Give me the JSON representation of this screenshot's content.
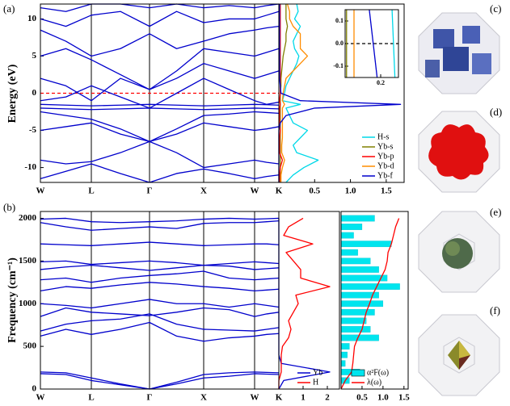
{
  "chart_data": [
    {
      "type": "line",
      "label": "(a)",
      "ylabel": "Energy (eV)",
      "x": [
        0,
        0.315,
        0.63,
        0.99,
        1.35,
        1.685,
        2.02,
        2.335,
        2.65,
        2.8,
        2.95
      ],
      "xlim": [
        0,
        2.95
      ],
      "xticks": [
        {
          "value": 0,
          "label": "W"
        },
        {
          "value": 0.63,
          "label": "L"
        },
        {
          "value": 1.35,
          "label": "Γ"
        },
        {
          "value": 2.02,
          "label": "X"
        },
        {
          "value": 2.65,
          "label": "W"
        },
        {
          "value": 2.95,
          "label": "K"
        }
      ],
      "xgrid": true,
      "ylim": [
        -12,
        12
      ],
      "yticks": [
        -10,
        -5,
        0,
        5,
        10
      ],
      "hline": 0,
      "hline_color": "#ff0000",
      "color": "#0000cc",
      "series": [
        {
          "values": [
            -11.5,
            -10.5,
            -9.5,
            -10.8,
            -12,
            -10.8,
            -10.2,
            -10.8,
            -11.5,
            -11.2,
            -11
          ]
        },
        {
          "values": [
            -9,
            -9.5,
            -9.2,
            -8,
            -6.5,
            -8,
            -10,
            -9.5,
            -9,
            -9.3,
            -9.5
          ]
        },
        {
          "values": [
            -5,
            -4.5,
            -4,
            -5.5,
            -6.5,
            -5.5,
            -4,
            -4.5,
            -5,
            -4.8,
            -4.5
          ]
        },
        {
          "values": [
            -2.5,
            -3,
            -3.5,
            -4.8,
            -6.5,
            -4.8,
            -3,
            -2.8,
            -2.5,
            -2.6,
            -2.7
          ]
        },
        {
          "values": [
            -1.5,
            -1.6,
            -1.7,
            -1.6,
            -1.5,
            -1.6,
            -1.7,
            -1.6,
            -1.5,
            -1.55,
            -1.6
          ]
        },
        {
          "values": [
            -2,
            -2.1,
            -2.2,
            -2.1,
            -2,
            -2.1,
            -2.2,
            -2.1,
            -2,
            -2.05,
            -2.1
          ]
        },
        {
          "values": [
            -1,
            -0.5,
            1,
            -0.5,
            -2,
            0,
            2,
            0.5,
            -1,
            -1.5,
            -1.2
          ]
        },
        {
          "values": [
            2,
            1,
            -1,
            2,
            0.5,
            2,
            4,
            3,
            2,
            2.5,
            3
          ]
        },
        {
          "values": [
            5,
            6,
            4.5,
            2.5,
            0.5,
            3,
            6,
            5.5,
            5,
            5.5,
            6
          ]
        },
        {
          "values": [
            8.5,
            7,
            5,
            6,
            8,
            6,
            7,
            8,
            8.5,
            8.8,
            9
          ]
        },
        {
          "values": [
            10,
            9,
            10.5,
            11,
            9,
            11,
            9.5,
            10,
            10,
            10.5,
            11
          ]
        },
        {
          "values": [
            11.5,
            11,
            12,
            12,
            11.5,
            12,
            11.5,
            11.8,
            11.5,
            11.8,
            12
          ]
        }
      ]
    },
    {
      "type": "line",
      "orientation": "horizontal",
      "y": [
        -12,
        -11,
        -10,
        -9,
        -8,
        -7,
        -6,
        -5,
        -4,
        -3,
        -2,
        -1.5,
        -1,
        0,
        1,
        2,
        3,
        4,
        5,
        6,
        7,
        8,
        9,
        10,
        11,
        12
      ],
      "ylim": [
        -12,
        12
      ],
      "xlim": [
        0,
        1.75
      ],
      "xticks": [
        0.5,
        {
          "value": 1,
          "label": "1.0"
        },
        1.5
      ],
      "legend": "lower right",
      "series": [
        {
          "name": "H-s",
          "color": "#00d8e8",
          "values": [
            0.1,
            0.2,
            0.35,
            0.55,
            0.25,
            0.2,
            0.3,
            0.4,
            0.2,
            0.15,
            0.1,
            0.3,
            0.05,
            0.08,
            0.1,
            0.15,
            0.2,
            0.25,
            0.28,
            0.22,
            0.2,
            0.25,
            0.3,
            0.22,
            0.27,
            0.25
          ]
        },
        {
          "name": "Yb-s",
          "color": "#808000",
          "values": [
            0.02,
            0.02,
            0.02,
            0.02,
            0.02,
            0.02,
            0.02,
            0.02,
            0.02,
            0.02,
            0.02,
            0.02,
            0.02,
            0.02,
            0.03,
            0.03,
            0.04,
            0.05,
            0.06,
            0.08,
            0.1,
            0.1,
            0.12,
            0.1,
            0.1,
            0.1
          ]
        },
        {
          "name": "Yb-p",
          "color": "#ff0000",
          "values": [
            0.01,
            0.01,
            0.02,
            0.05,
            0.01,
            0.01,
            0.01,
            0.02,
            0.01,
            0.01,
            0.01,
            0.02,
            0.01,
            0.02,
            0.02,
            0.02,
            0.02,
            0.02,
            0.02,
            0.02,
            0.02,
            0.02,
            0.02,
            0.02,
            0.02,
            0.02
          ]
        },
        {
          "name": "Yb-d",
          "color": "#ff8c00",
          "values": [
            0.03,
            0.03,
            0.05,
            0.08,
            0.04,
            0.04,
            0.05,
            0.05,
            0.05,
            0.05,
            0.05,
            0.08,
            0.05,
            0.06,
            0.08,
            0.1,
            0.2,
            0.3,
            0.4,
            0.3,
            0.3,
            0.3,
            0.2,
            0.15,
            0.15,
            0.12
          ]
        },
        {
          "name": "Yb-f",
          "color": "#0000cc",
          "values": [
            0,
            0,
            0,
            0,
            0,
            0,
            0,
            0,
            0.02,
            0.1,
            0.5,
            1.7,
            0.3,
            0.03,
            0.02,
            0.01,
            0.01,
            0.01,
            0.01,
            0.01,
            0.01,
            0.01,
            0.01,
            0.01,
            0.01,
            0.01
          ]
        }
      ]
    },
    {
      "type": "line",
      "xlim": [
        0.1,
        0.25
      ],
      "xticks": [
        0.2
      ],
      "ylim": [
        -0.15,
        0.15
      ],
      "yticks": [
        -0.1,
        {
          "value": 0,
          "label": "0.0"
        },
        0.1
      ],
      "hline": 0,
      "hline_color": "#000000",
      "series": [
        {
          "color": "#808000",
          "x": [
            0.104,
            0.104
          ],
          "values": [
            0.15,
            -0.15
          ]
        },
        {
          "color": "#ff8c00",
          "x": [
            0.125,
            0.125
          ],
          "values": [
            0.15,
            -0.15
          ]
        },
        {
          "color": "#0000cc",
          "x": [
            0.168,
            0.19
          ],
          "values": [
            0.15,
            -0.15
          ]
        },
        {
          "color": "#00d8e8",
          "x": [
            0.232,
            0.24
          ],
          "values": [
            0.15,
            -0.15
          ]
        }
      ]
    },
    {
      "type": "line",
      "label": "(b)",
      "ylabel": "Frequency (cm⁻¹)",
      "x": [
        0,
        0.315,
        0.63,
        0.99,
        1.35,
        1.685,
        2.02,
        2.335,
        2.65,
        2.8,
        2.95
      ],
      "xlim": [
        0,
        2.95
      ],
      "xticks": [
        {
          "value": 0,
          "label": "W"
        },
        {
          "value": 0.63,
          "label": "L"
        },
        {
          "value": 1.35,
          "label": "Γ"
        },
        {
          "value": 2.02,
          "label": "X"
        },
        {
          "value": 2.65,
          "label": "W"
        },
        {
          "value": 2.95,
          "label": "K"
        }
      ],
      "xgrid": true,
      "ylim": [
        0,
        2080
      ],
      "yticks": [
        0,
        500,
        1000,
        1500,
        2000
      ],
      "color": "#0000cc",
      "series": [
        {
          "values": [
            180,
            170,
            100,
            50,
            0,
            60,
            130,
            150,
            180,
            175,
            170
          ]
        },
        {
          "values": [
            200,
            190,
            130,
            60,
            0,
            80,
            170,
            190,
            200,
            195,
            190
          ]
        },
        {
          "values": [
            620,
            700,
            640,
            700,
            780,
            620,
            560,
            600,
            620,
            640,
            650
          ]
        },
        {
          "values": [
            680,
            760,
            800,
            820,
            880,
            760,
            700,
            690,
            680,
            700,
            720
          ]
        },
        {
          "values": [
            850,
            950,
            900,
            880,
            860,
            900,
            950,
            930,
            850,
            880,
            900
          ]
        },
        {
          "values": [
            1000,
            980,
            950,
            1000,
            1050,
            1000,
            1000,
            960,
            1000,
            980,
            960
          ]
        },
        {
          "values": [
            1150,
            1200,
            1180,
            1220,
            1250,
            1230,
            1200,
            1180,
            1150,
            1160,
            1170
          ]
        },
        {
          "values": [
            1280,
            1300,
            1250,
            1300,
            1330,
            1350,
            1380,
            1300,
            1280,
            1290,
            1300
          ]
        },
        {
          "values": [
            1400,
            1430,
            1450,
            1420,
            1390,
            1420,
            1450,
            1440,
            1400,
            1410,
            1420
          ]
        },
        {
          "values": [
            1490,
            1500,
            1460,
            1480,
            1500,
            1480,
            1450,
            1470,
            1490,
            1480,
            1470
          ]
        },
        {
          "values": [
            1700,
            1690,
            1680,
            1700,
            1720,
            1700,
            1680,
            1690,
            1700,
            1700,
            1690
          ]
        },
        {
          "values": [
            1950,
            1900,
            1860,
            1880,
            1900,
            1880,
            1940,
            1950,
            1950,
            1960,
            1970
          ]
        },
        {
          "values": [
            1990,
            2000,
            1960,
            1950,
            1960,
            1970,
            1990,
            2000,
            1990,
            1995,
            2000
          ]
        }
      ]
    },
    {
      "type": "line",
      "orientation": "horizontal",
      "y": [
        0,
        100,
        200,
        300,
        400,
        500,
        600,
        700,
        800,
        900,
        1000,
        1100,
        1200,
        1300,
        1400,
        1500,
        1600,
        1700,
        1800,
        1900,
        2000
      ],
      "ylim": [
        0,
        2080
      ],
      "xlim": [
        0,
        2.5
      ],
      "xticks": [
        1,
        2
      ],
      "legend": "lower right",
      "series": [
        {
          "name": "Yb",
          "color": "#0000cc",
          "values": [
            0,
            0.2,
            2.1,
            0.1,
            0,
            0,
            0,
            0,
            0,
            0,
            0,
            0,
            0,
            0,
            0,
            0,
            0,
            0,
            0,
            0,
            0
          ]
        },
        {
          "name": "H",
          "color": "#ff0000",
          "values": [
            0,
            0,
            0.1,
            0.1,
            0.1,
            0.15,
            0.4,
            0.5,
            0.4,
            0.6,
            0.8,
            0.7,
            2.1,
            0.9,
            0.9,
            0.6,
            0.3,
            1.4,
            0.2,
            0.4,
            1.0
          ]
        }
      ]
    },
    {
      "type": "line",
      "orientation": "horizontal",
      "y": [
        0,
        100,
        200,
        300,
        400,
        500,
        600,
        700,
        800,
        900,
        1000,
        1100,
        1200,
        1300,
        1400,
        1500,
        1600,
        1700,
        1800,
        1900,
        2000
      ],
      "ylim": [
        0,
        2080
      ],
      "xlim": [
        0,
        1.6
      ],
      "xticks": [
        0.5,
        {
          "value": 1,
          "label": "1.0"
        },
        1.5
      ],
      "legend": "lower right",
      "series": [
        {
          "name": "α²F(ω)",
          "color": "#00e5ee",
          "fill": true,
          "values": [
            0,
            0.2,
            0.45,
            0.1,
            0.15,
            0.2,
            0.9,
            0.7,
            0.6,
            0.8,
            1.0,
            0.9,
            1.4,
            1.1,
            0.9,
            0.7,
            0.4,
            1.2,
            0.3,
            0.5,
            0.8
          ]
        },
        {
          "name": "λ(ω)",
          "color": "#ff0000",
          "values": [
            0,
            0.1,
            0.25,
            0.28,
            0.3,
            0.32,
            0.4,
            0.5,
            0.55,
            0.6,
            0.68,
            0.75,
            0.85,
            0.95,
            1.05,
            1.1,
            1.12,
            1.2,
            1.25,
            1.3,
            1.38
          ]
        }
      ]
    }
  ],
  "fermi_surfaces": {
    "labels": [
      "(c)",
      "(d)",
      "(e)",
      "(f)"
    ]
  }
}
